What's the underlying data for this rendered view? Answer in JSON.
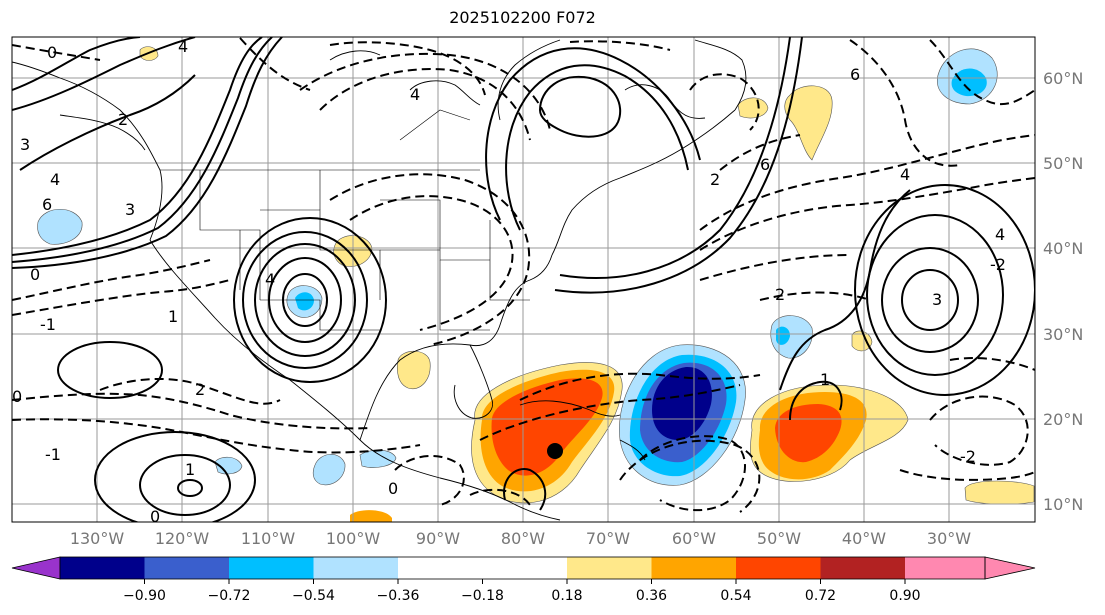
{
  "title": "2025102200 F072",
  "latitude_labels": [
    "60°N",
    "50°N",
    "40°N",
    "30°N",
    "20°N",
    "10°N"
  ],
  "longitude_labels": [
    "130°W",
    "120°W",
    "110°W",
    "100°W",
    "90°W",
    "80°W",
    "70°W",
    "60°W",
    "50°W",
    "40°W",
    "30°W"
  ],
  "colorbar": {
    "ticks": [
      "−0.90",
      "−0.72",
      "−0.54",
      "−0.36",
      "−0.18",
      "0.18",
      "0.36",
      "0.54",
      "0.72",
      "0.90"
    ],
    "colors": [
      "#9933cc",
      "#00008b",
      "#3a5fcd",
      "#00bfff",
      "#b0e2ff",
      "#ffffff",
      "#ffe88a",
      "#ffa500",
      "#ff4500",
      "#b22222",
      "#ff88b0"
    ]
  },
  "contour_labels": [
    "0",
    "4",
    "6",
    "4",
    "2",
    "3",
    "4",
    "6",
    "3",
    "0",
    "-1",
    "2",
    "1",
    "0",
    "-1",
    "1",
    "0",
    "4",
    "0",
    "2",
    "4",
    "3",
    "2",
    "-2",
    "-2",
    "1",
    "4",
    "6"
  ],
  "marker": "storm-center-dot"
}
